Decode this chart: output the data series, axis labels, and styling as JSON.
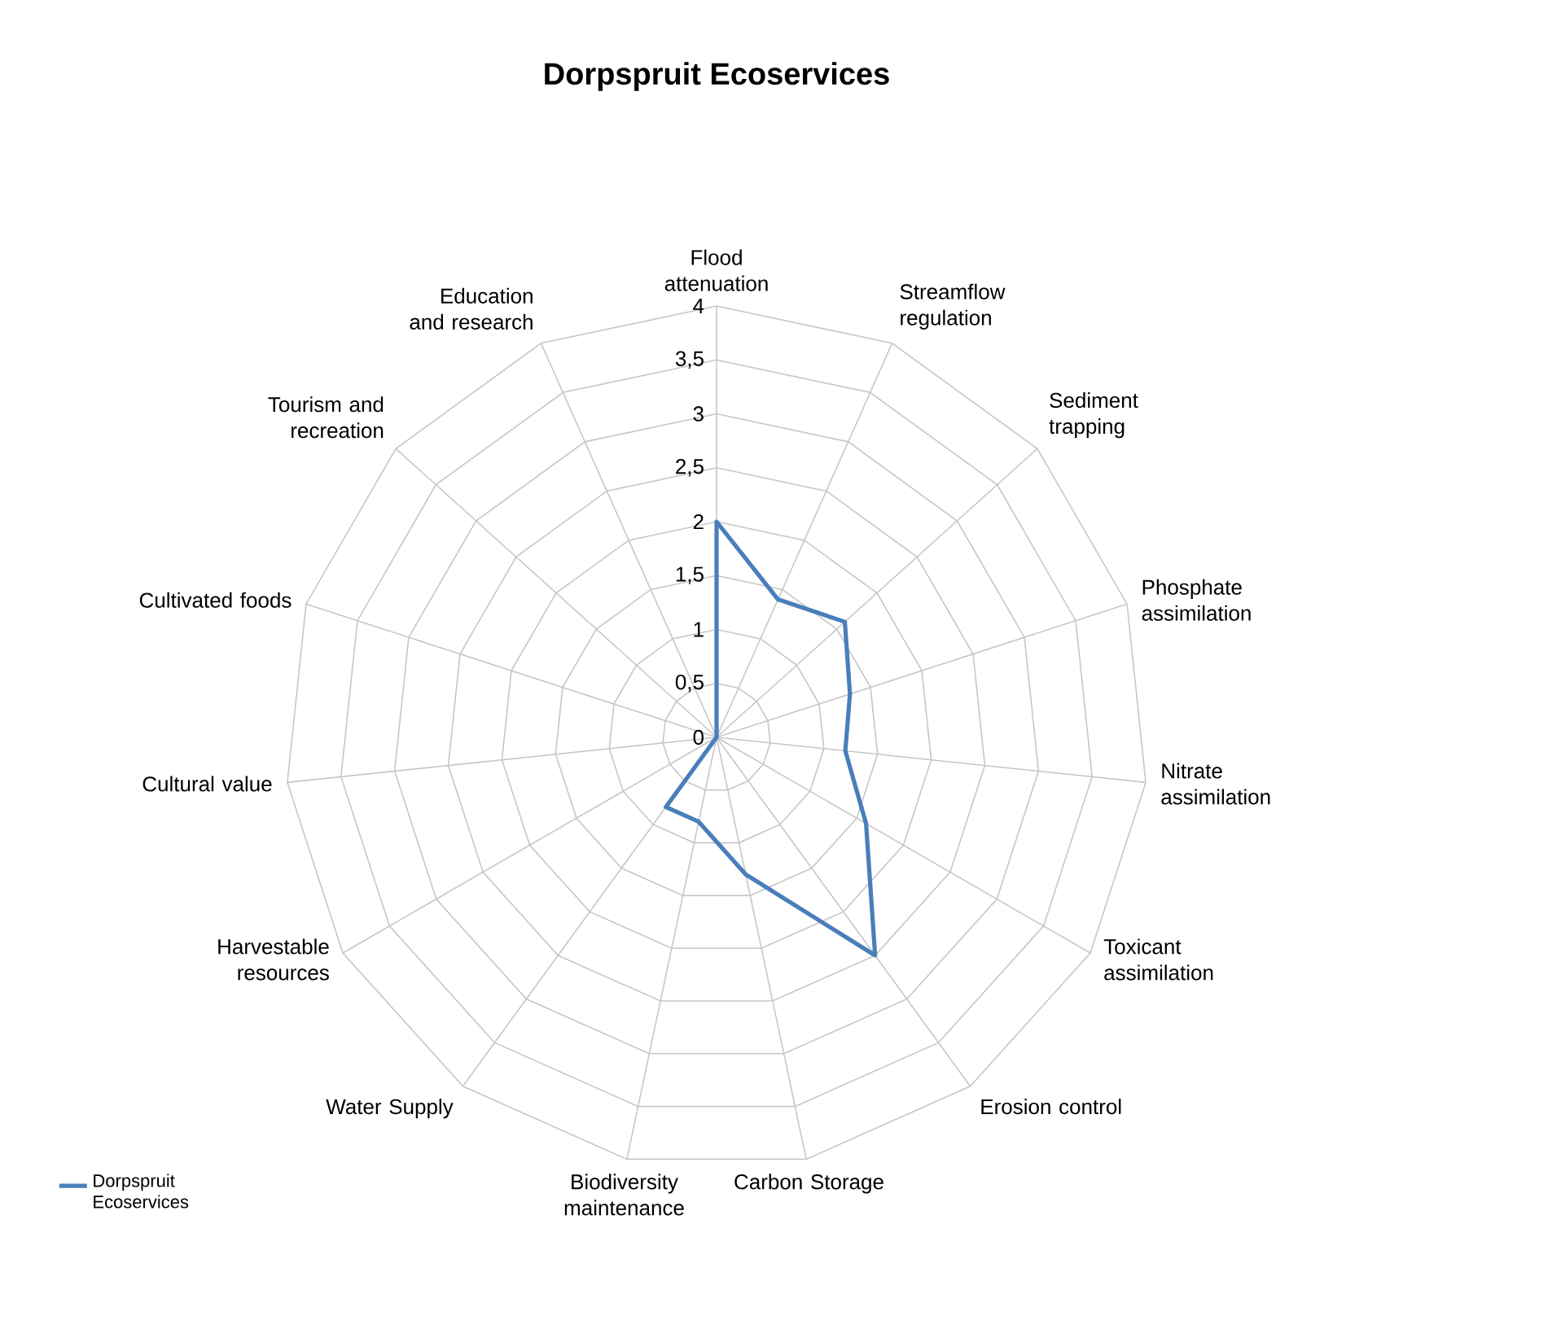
{
  "chart_data": {
    "type": "radar",
    "title": "Dorpspruit Ecoservices",
    "categories": [
      "Flood attenuation",
      "Streamflow regulation",
      "Sediment trapping",
      "Phosphate assimilation",
      "Nitrate assimilation",
      "Toxicant assimilation",
      "Erosion control",
      "Carbon Storage",
      "Biodiversity maintenance",
      "Water Supply",
      "Harvestable resources",
      "Cultural value",
      "Cultivated foods",
      "Tourism and recreation",
      "Education and research"
    ],
    "series": [
      {
        "name": "Dorpspruit Ecoservices",
        "color": "#4a7ebb",
        "values": [
          2,
          1.4,
          1.6,
          1.3,
          1.2,
          1.6,
          2.5,
          1.3,
          0.8,
          0.8,
          0,
          0,
          0,
          0,
          0
        ]
      }
    ],
    "ylim": [
      0,
      4
    ],
    "yticks": [
      0,
      {
        "value": 0.5,
        "label": "0,5"
      },
      1,
      {
        "value": 1.5,
        "label": "1,5"
      },
      2,
      {
        "value": 2.5,
        "label": "2,5"
      },
      3,
      {
        "value": 3.5,
        "label": "3,5"
      },
      4
    ],
    "grid": true,
    "legend": "bottom left"
  }
}
